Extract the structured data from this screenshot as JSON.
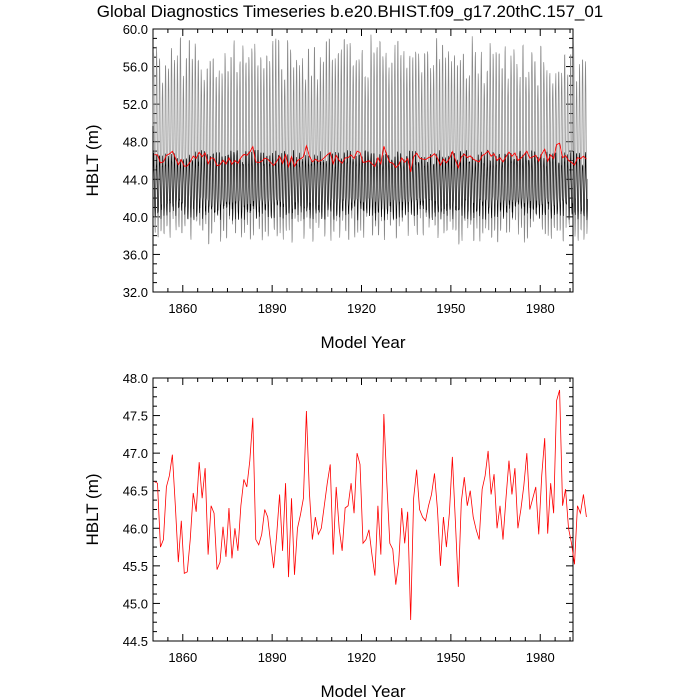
{
  "page_title": "Global Diagnostics Timeseries b.e20.BHIST.f09_g17.20thC.157_01",
  "chart_data": [
    {
      "type": "line",
      "xlabel": "Model Year",
      "ylabel": "HBLT (m)",
      "xlim": [
        1850,
        1991
      ],
      "ylim": [
        32,
        60
      ],
      "xticks": [
        1860,
        1890,
        1920,
        1950,
        1980
      ],
      "yticks": [
        32.0,
        36.0,
        40.0,
        44.0,
        48.0,
        52.0,
        56.0,
        60.0
      ],
      "ytick_labels": [
        "32.0",
        "36.0",
        "40.0",
        "44.0",
        "48.0",
        "52.0",
        "56.0",
        "60.0"
      ],
      "series": [
        {
          "role": "monthly",
          "color": "#000000",
          "x_start": 1850,
          "x_end": 1991,
          "step": 0.0833,
          "annual_max_approx": 58.5,
          "annual_min_approx": 38.2,
          "note_color_light": "#888888"
        },
        {
          "role": "annual-mean",
          "color": "#ff0000"
        }
      ],
      "grid": false
    },
    {
      "type": "line",
      "xlabel": "Model Year",
      "ylabel": "HBLT (m)",
      "xlim": [
        1850,
        1991
      ],
      "ylim": [
        44.5,
        48.0
      ],
      "xticks": [
        1860,
        1890,
        1920,
        1950,
        1980
      ],
      "yticks": [
        44.5,
        45.0,
        45.5,
        46.0,
        46.5,
        47.0,
        47.5,
        48.0
      ],
      "ytick_labels": [
        "44.5",
        "45.0",
        "45.5",
        "46.0",
        "46.5",
        "47.0",
        "47.5",
        "48.0"
      ],
      "grid": false,
      "series": [
        {
          "role": "annual-mean",
          "color": "#ff0000",
          "x_start": 1850.5,
          "values": [
            46.62,
            46.6,
            45.75,
            45.85,
            46.55,
            46.7,
            46.98,
            46.3,
            45.55,
            46.1,
            45.4,
            45.42,
            45.85,
            46.47,
            46.22,
            46.88,
            46.4,
            46.8,
            45.65,
            46.3,
            46.2,
            45.45,
            45.55,
            46.02,
            45.62,
            46.27,
            45.6,
            46.0,
            45.7,
            46.3,
            46.65,
            46.55,
            46.9,
            47.47,
            45.85,
            45.78,
            45.92,
            46.25,
            46.15,
            45.8,
            45.47,
            45.9,
            46.45,
            45.7,
            46.6,
            45.35,
            46.4,
            45.38,
            46.0,
            46.18,
            46.4,
            47.56,
            46.48,
            45.85,
            46.15,
            45.92,
            46.0,
            46.3,
            46.6,
            46.85,
            45.65,
            46.55,
            46.0,
            45.7,
            46.27,
            46.3,
            46.6,
            46.2,
            47.0,
            46.85,
            45.8,
            45.85,
            45.98,
            45.65,
            45.37,
            46.3,
            45.65,
            47.52,
            46.6,
            45.8,
            45.72,
            45.25,
            45.55,
            46.27,
            45.8,
            46.22,
            44.78,
            46.4,
            46.78,
            46.25,
            46.15,
            46.1,
            46.3,
            46.45,
            46.73,
            46.25,
            45.5,
            46.15,
            45.75,
            46.2,
            46.95,
            46.1,
            45.22,
            46.35,
            46.68,
            46.3,
            46.5,
            46.15,
            45.98,
            45.85,
            46.52,
            46.7,
            47.03,
            46.45,
            46.72,
            46.0,
            46.3,
            45.85,
            46.4,
            46.9,
            46.45,
            46.8,
            46.0,
            46.25,
            46.57,
            47.0,
            46.25,
            46.4,
            46.55,
            45.92,
            46.7,
            47.2,
            45.93,
            46.6,
            46.2,
            47.7,
            47.84,
            46.3,
            46.52,
            46.0,
            45.8,
            45.52,
            46.3,
            46.2,
            46.45,
            46.15
          ]
        }
      ]
    }
  ]
}
